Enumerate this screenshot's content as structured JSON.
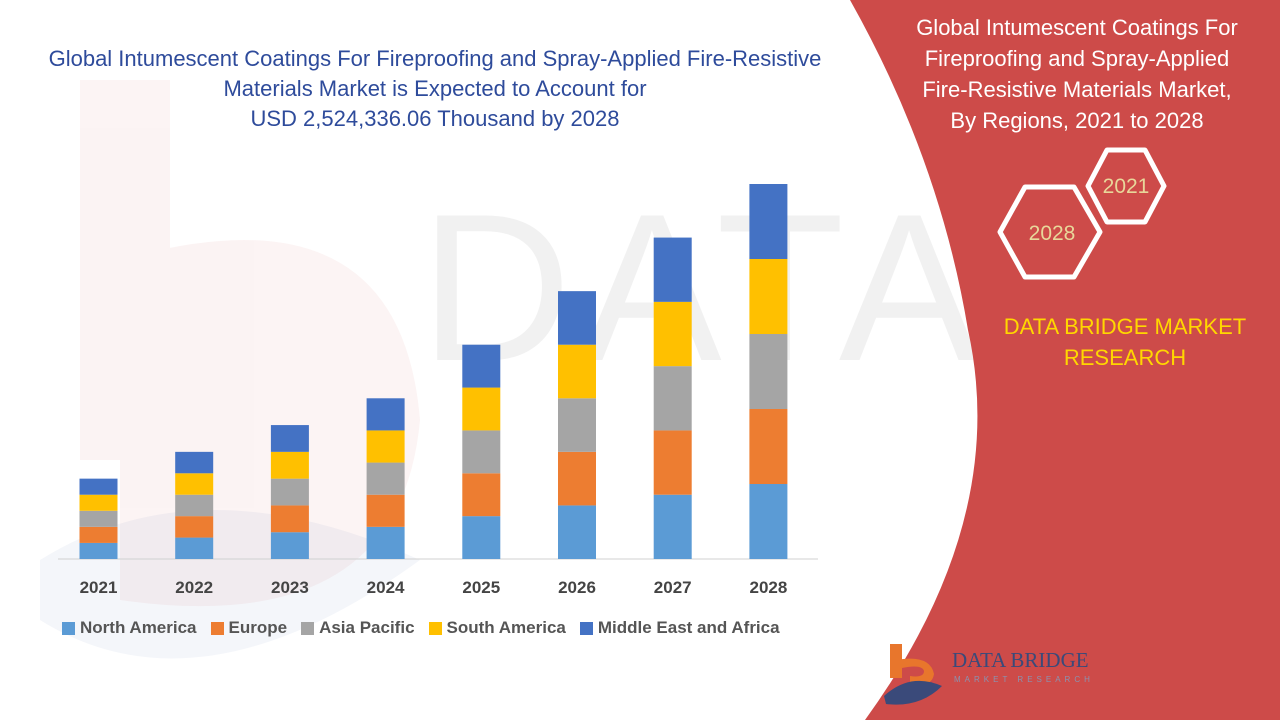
{
  "main_title": {
    "line1": "Global Intumescent Coatings For Fireproofing and Spray-Applied Fire-Resistive",
    "line2": "Materials Market is Expected to Account for",
    "line3": "USD 2,524,336.06 Thousand by 2028"
  },
  "side_title": {
    "line1": "Global Intumescent Coatings For",
    "line2": "Fireproofing and Spray-Applied",
    "line3": "Fire-Resistive Materials Market,",
    "line4": "By Regions, 2021 to 2028"
  },
  "hexagons": {
    "year_a": "2021",
    "year_b": "2028"
  },
  "brand": {
    "line1": "DATA BRIDGE MARKET",
    "line2": "RESEARCH"
  },
  "logo": {
    "name": "DATA BRIDGE",
    "sub": "MARKET RESEARCH"
  },
  "colors": {
    "panel_red": "#cd4b49",
    "title_blue": "#2e4b9b",
    "brand_yellow": "#ffd700",
    "north_america": "#5b9bd5",
    "europe": "#ed7d31",
    "asia_pacific": "#a5a5a5",
    "south_america": "#ffc000",
    "middle_east_africa": "#4472c4"
  },
  "chart_data": {
    "type": "bar",
    "stacked": true,
    "categories": [
      "2021",
      "2022",
      "2023",
      "2024",
      "2025",
      "2026",
      "2027",
      "2028"
    ],
    "series": [
      {
        "name": "North America",
        "color": "#5b9bd5",
        "values": [
          15,
          20,
          25,
          30,
          40,
          50,
          60,
          70
        ]
      },
      {
        "name": "Europe",
        "color": "#ed7d31",
        "values": [
          15,
          20,
          25,
          30,
          40,
          50,
          60,
          70
        ]
      },
      {
        "name": "Asia Pacific",
        "color": "#a5a5a5",
        "values": [
          15,
          20,
          25,
          30,
          40,
          50,
          60,
          70
        ]
      },
      {
        "name": "South America",
        "color": "#ffc000",
        "values": [
          15,
          20,
          25,
          30,
          40,
          50,
          60,
          70
        ]
      },
      {
        "name": "Middle East and Africa",
        "color": "#4472c4",
        "values": [
          15,
          20,
          25,
          30,
          40,
          50,
          60,
          70
        ]
      }
    ],
    "ylim": [
      0,
      350
    ],
    "grid": false,
    "legend": "bottom"
  }
}
